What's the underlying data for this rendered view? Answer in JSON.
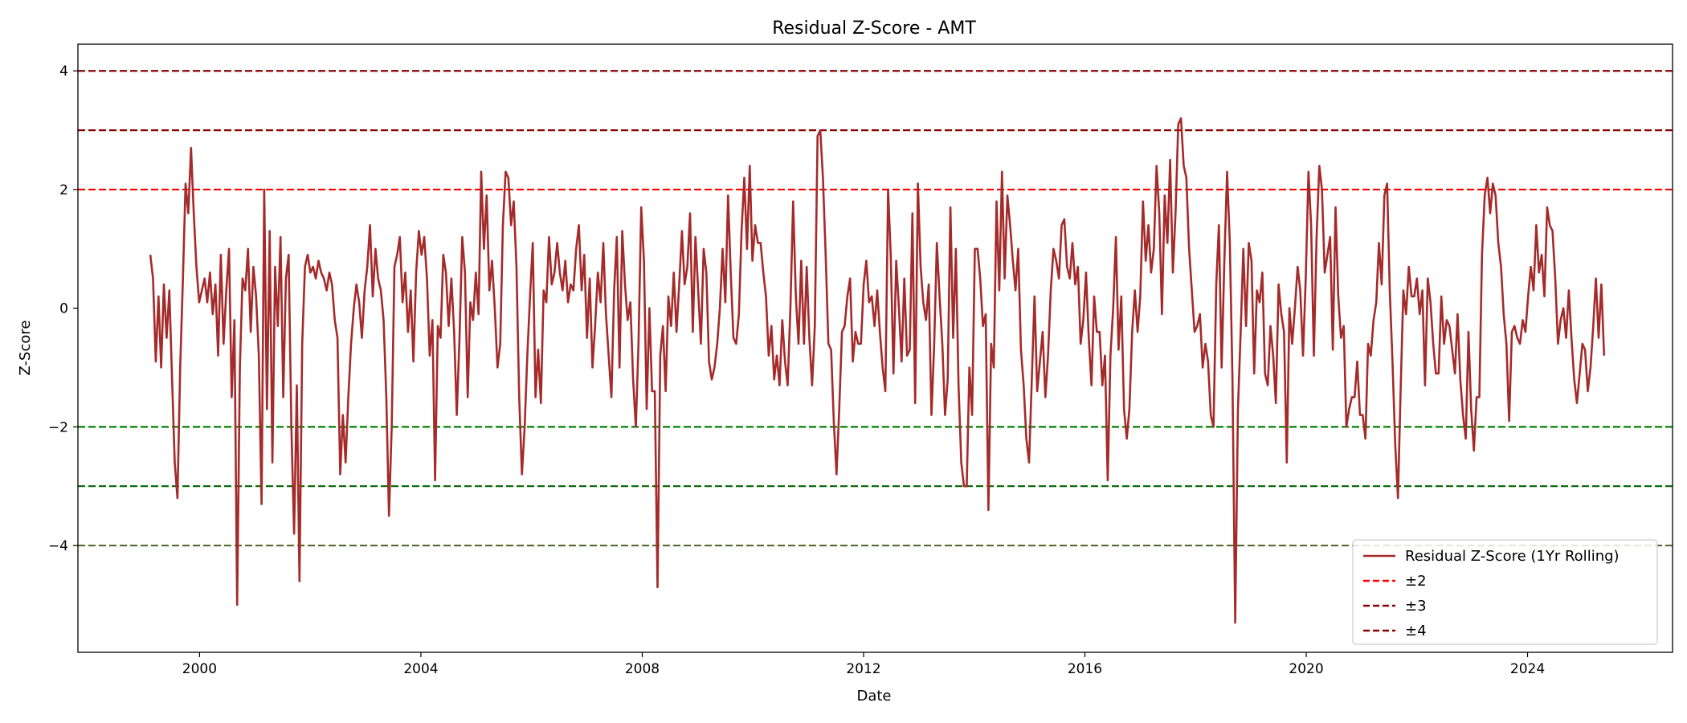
{
  "chart_data": {
    "type": "line",
    "title": "Residual Z-Score - AMT",
    "xlabel": "Date",
    "ylabel": "Z-Score",
    "xlim": [
      "1997-10-20",
      "2026-08-15"
    ],
    "ylim": [
      -5.8,
      4.45
    ],
    "x_ticks": [
      "2000",
      "2004",
      "2008",
      "2012",
      "2016",
      "2020",
      "2024"
    ],
    "y_ticks": [
      4,
      2,
      0,
      -2,
      -4
    ],
    "y_tick_labels": [
      "4",
      "2",
      "0",
      "−2",
      "−4"
    ],
    "grid": false,
    "legend_position": "lower right",
    "series": [
      {
        "name": "Residual Z-Score (1Yr Rolling)",
        "color": "#a52a2a",
        "x_start": "1999-02-10",
        "x_end": "2025-05-20",
        "values": [
          0.9,
          0.5,
          -0.9,
          0.2,
          -1.0,
          0.4,
          -0.5,
          0.3,
          -1.2,
          -2.6,
          -3.2,
          -1.0,
          0.5,
          2.1,
          1.6,
          2.7,
          1.6,
          0.7,
          0.1,
          0.3,
          0.5,
          0.1,
          0.6,
          -0.1,
          0.4,
          -0.8,
          0.9,
          -0.6,
          0.3,
          1.0,
          -1.5,
          -0.2,
          -5.0,
          -1.0,
          0.5,
          0.3,
          1.0,
          -0.4,
          0.7,
          0.2,
          -0.8,
          -3.3,
          2.0,
          -1.7,
          1.3,
          -2.6,
          0.7,
          -0.3,
          1.2,
          -1.5,
          0.5,
          0.9,
          -2.0,
          -3.8,
          -1.3,
          -4.6,
          -0.6,
          0.7,
          0.9,
          0.6,
          0.7,
          0.5,
          0.8,
          0.6,
          0.5,
          0.3,
          0.6,
          0.4,
          -0.2,
          -0.5,
          -2.8,
          -1.8,
          -2.6,
          -1.5,
          -0.6,
          0.0,
          0.4,
          0.1,
          -0.5,
          0.3,
          0.7,
          1.4,
          0.2,
          1.0,
          0.5,
          0.3,
          -0.2,
          -1.5,
          -3.5,
          -2.0,
          0.7,
          0.9,
          1.2,
          0.1,
          0.6,
          -0.4,
          0.3,
          -0.9,
          0.6,
          1.3,
          0.9,
          1.2,
          0.5,
          -0.8,
          -0.2,
          -2.9,
          -0.3,
          -0.5,
          0.9,
          0.6,
          -0.3,
          0.5,
          -0.4,
          -1.8,
          -0.5,
          1.2,
          0.6,
          -1.5,
          0.1,
          -0.2,
          0.6,
          -0.1,
          2.3,
          1.0,
          1.9,
          0.3,
          0.8,
          0.0,
          -1.0,
          -0.6,
          1.4,
          2.3,
          2.2,
          1.4,
          1.8,
          0.7,
          -1.5,
          -2.8,
          -2.0,
          -0.8,
          0.2,
          1.1,
          -1.5,
          -0.7,
          -1.6,
          0.3,
          0.1,
          1.2,
          0.4,
          0.6,
          1.1,
          0.6,
          0.3,
          0.8,
          0.1,
          0.4,
          0.3,
          1.0,
          1.4,
          0.3,
          0.9,
          -0.5,
          0.5,
          -1.0,
          -0.3,
          0.6,
          0.1,
          1.1,
          -0.1,
          -0.8,
          -1.5,
          0.3,
          1.2,
          -1.0,
          1.3,
          0.4,
          -0.2,
          0.1,
          -1.2,
          -2.0,
          -0.6,
          1.7,
          0.8,
          -1.7,
          0.0,
          -1.4,
          -1.4,
          -4.7,
          -0.8,
          -0.3,
          -1.4,
          0.2,
          -0.3,
          0.6,
          -0.4,
          0.4,
          1.3,
          0.4,
          0.7,
          1.6,
          -0.4,
          1.2,
          0.3,
          -0.6,
          1.0,
          0.6,
          -0.9,
          -1.2,
          -1.0,
          -0.6,
          0.0,
          1.0,
          0.1,
          1.9,
          0.6,
          -0.5,
          -0.6,
          -0.1,
          1.3,
          2.2,
          1.0,
          2.4,
          0.8,
          1.4,
          1.1,
          1.1,
          0.6,
          0.2,
          -0.8,
          -0.3,
          -1.2,
          -0.8,
          -1.3,
          -0.2,
          -0.9,
          -1.3,
          0.0,
          1.8,
          0.2,
          -0.6,
          0.8,
          -0.6,
          0.7,
          -0.5,
          -1.3,
          -0.3,
          2.9,
          3.0,
          2.2,
          0.9,
          -0.6,
          -0.7,
          -1.9,
          -2.8,
          -1.7,
          -0.4,
          -0.3,
          0.2,
          0.5,
          -0.9,
          -0.4,
          -0.6,
          -0.6,
          0.4,
          0.8,
          0.1,
          0.2,
          -0.3,
          0.3,
          -0.4,
          -1.0,
          -1.4,
          2.0,
          0.9,
          -1.1,
          0.8,
          0.0,
          -0.9,
          0.5,
          -0.8,
          -0.7,
          1.6,
          -1.6,
          2.1,
          0.7,
          0.1,
          -0.2,
          0.4,
          -1.8,
          -0.6,
          1.1,
          0.2,
          -0.6,
          -1.8,
          -1.2,
          1.7,
          -0.5,
          1.0,
          -1.3,
          -2.6,
          -3.0,
          -3.0,
          -1.0,
          -1.8,
          1.0,
          1.0,
          0.5,
          -0.3,
          -0.1,
          -3.4,
          -0.6,
          -1.0,
          1.8,
          0.3,
          2.3,
          0.5,
          1.9,
          1.4,
          0.8,
          0.3,
          1.0,
          -0.7,
          -1.3,
          -2.2,
          -2.6,
          -1.2,
          0.2,
          -1.4,
          -0.9,
          -0.4,
          -1.5,
          -0.8,
          0.3,
          1.0,
          0.8,
          0.5,
          1.4,
          1.5,
          0.7,
          0.5,
          1.1,
          0.4,
          0.7,
          -0.6,
          -0.2,
          0.6,
          -0.5,
          -1.3,
          0.2,
          -0.4,
          -0.4,
          -1.3,
          -0.8,
          -2.9,
          -0.8,
          0.0,
          1.2,
          -0.7,
          0.2,
          -1.7,
          -2.2,
          -1.7,
          -0.4,
          0.3,
          -0.4,
          0.2,
          1.8,
          0.8,
          1.4,
          0.6,
          1.0,
          2.4,
          1.6,
          -0.1,
          1.9,
          1.1,
          2.5,
          0.6,
          1.6,
          3.1,
          3.2,
          2.4,
          2.2,
          1.0,
          0.3,
          -0.4,
          -0.3,
          -0.1,
          -1.0,
          -0.6,
          -0.9,
          -1.8,
          -2.0,
          0.4,
          1.4,
          -1.0,
          0.8,
          2.3,
          1.1,
          -1.2,
          -5.3,
          -1.7,
          -0.4,
          1.0,
          -0.3,
          1.1,
          0.8,
          -1.1,
          0.3,
          0.1,
          0.6,
          -1.1,
          -1.3,
          -0.3,
          -0.8,
          -1.6,
          0.4,
          -0.1,
          -0.4,
          -2.6,
          0.0,
          -0.6,
          0.0,
          0.7,
          0.3,
          -0.8,
          0.5,
          2.3,
          1.4,
          -0.8,
          1.2,
          2.4,
          2.0,
          0.6,
          0.9,
          1.2,
          -0.7,
          1.7,
          0.2,
          -0.5,
          -0.3,
          -2.0,
          -1.7,
          -1.5,
          -1.5,
          -0.9,
          -1.8,
          -1.8,
          -2.2,
          -0.6,
          -0.8,
          -0.2,
          0.1,
          1.1,
          0.4,
          1.9,
          2.1,
          0.3,
          -0.9,
          -2.3,
          -3.2,
          -1.4,
          0.3,
          -0.1,
          0.7,
          0.2,
          0.2,
          0.5,
          -0.1,
          0.3,
          -1.3,
          0.5,
          0.1,
          -0.6,
          -1.1,
          -1.1,
          0.2,
          -0.6,
          -0.2,
          -0.3,
          -0.7,
          -1.1,
          -0.1,
          -1.2,
          -1.8,
          -2.2,
          -0.4,
          -1.7,
          -2.4,
          -1.5,
          -1.5,
          0.9,
          1.9,
          2.2,
          1.6,
          2.1,
          1.9,
          1.1,
          0.7,
          -0.1,
          -0.6,
          -1.9,
          -0.4,
          -0.3,
          -0.5,
          -0.6,
          -0.2,
          -0.4,
          0.2,
          0.7,
          0.3,
          1.4,
          0.6,
          0.9,
          0.2,
          1.7,
          1.4,
          1.3,
          0.5,
          -0.6,
          -0.2,
          0.0,
          -0.5,
          0.3,
          -0.5,
          -1.2,
          -1.6,
          -1.1,
          -0.6,
          -0.7,
          -1.4,
          -1.0,
          -0.3,
          0.5,
          -0.5,
          0.4,
          -0.8
        ]
      }
    ],
    "reference_lines": [
      {
        "y": 4,
        "color": "#8b0000"
      },
      {
        "y": 3,
        "color": "#8b0000"
      },
      {
        "y": 2,
        "color": "#ff0000"
      },
      {
        "y": -2,
        "color": "#008000"
      },
      {
        "y": -3,
        "color": "#006400"
      },
      {
        "y": -4,
        "color": "#556b2f"
      }
    ],
    "legend": [
      {
        "label": "Residual Z-Score (1Yr Rolling)",
        "color": "#a52a2a",
        "style": "solid"
      },
      {
        "label": "±2",
        "color": "#ff0000",
        "style": "dashed"
      },
      {
        "label": "±3",
        "color": "#8b0000",
        "style": "dashed"
      },
      {
        "label": "±4",
        "color": "#8b0000",
        "style": "dashed"
      }
    ]
  }
}
